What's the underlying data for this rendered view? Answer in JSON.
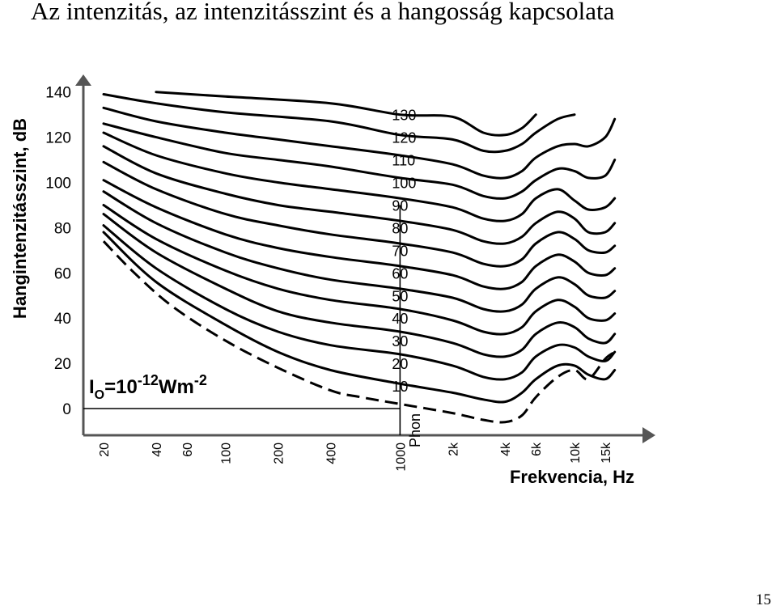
{
  "slide": {
    "title": "Az intenzitás, az intenzitásszint és a hangosság kapcsolata",
    "page_number": "15"
  },
  "chart_data": {
    "type": "line",
    "xlabel": "Frekvencia, Hz",
    "ylabel": "Hangintenzitásszint, dB",
    "xscale": "log",
    "xlim": [
      16,
      20000
    ],
    "ylim": [
      -5,
      145
    ],
    "x_ticks": [
      20,
      40,
      60,
      100,
      200,
      400,
      1000,
      2000,
      4000,
      6000,
      10000,
      15000
    ],
    "x_tick_labels": [
      "20",
      "40",
      "60",
      "100",
      "200",
      "400",
      "1000",
      "2k",
      "4k",
      "6k",
      "10k",
      "15k"
    ],
    "y_ticks": [
      0,
      20,
      40,
      60,
      80,
      100,
      120,
      140
    ],
    "y_tick_labels": [
      "0",
      "20",
      "40",
      "60",
      "80",
      "100",
      "120",
      "140"
    ],
    "reference_label": {
      "base": "I",
      "sub": "O",
      "eq": "=10",
      "exp1": "-12",
      "unit": "Wm",
      "exp2": "-2"
    },
    "reference_level_db": 0,
    "reference_frequency_hz": 1000,
    "phon_label": "Phon",
    "curve_labels": [
      "130",
      "120",
      "110",
      "100",
      "90",
      "80",
      "70",
      "60",
      "50",
      "40",
      "30",
      "20",
      "10"
    ],
    "curve_levels": [
      130,
      120,
      110,
      100,
      90,
      80,
      70,
      60,
      50,
      40,
      30,
      20,
      10
    ],
    "threshold_curve": {
      "style": "dashed",
      "points": [
        [
          20,
          74
        ],
        [
          30,
          60
        ],
        [
          50,
          45
        ],
        [
          100,
          30
        ],
        [
          200,
          18
        ],
        [
          400,
          8
        ],
        [
          600,
          5
        ],
        [
          1000,
          2
        ],
        [
          2000,
          -2
        ],
        [
          3000,
          -5
        ],
        [
          4000,
          -6
        ],
        [
          5000,
          -3
        ],
        [
          6000,
          5
        ],
        [
          8000,
          14
        ],
        [
          10000,
          17
        ],
        [
          12000,
          13
        ],
        [
          15000,
          22
        ],
        [
          17000,
          25
        ]
      ]
    },
    "series": [
      {
        "phon": 130,
        "points": [
          [
            40,
            140
          ],
          [
            100,
            138
          ],
          [
            400,
            135
          ],
          [
            1000,
            130
          ],
          [
            2000,
            129
          ],
          [
            3000,
            122
          ],
          [
            4000,
            121
          ],
          [
            5000,
            124
          ],
          [
            6000,
            130
          ]
        ]
      },
      {
        "phon": 120,
        "points": [
          [
            20,
            139
          ],
          [
            40,
            135
          ],
          [
            100,
            131
          ],
          [
            400,
            127
          ],
          [
            1000,
            121
          ],
          [
            2000,
            119
          ],
          [
            3000,
            114
          ],
          [
            4000,
            114
          ],
          [
            5000,
            117
          ],
          [
            6000,
            122
          ],
          [
            8000,
            128
          ],
          [
            10000,
            130
          ]
        ]
      },
      {
        "phon": 110,
        "points": [
          [
            20,
            133
          ],
          [
            40,
            127
          ],
          [
            100,
            122
          ],
          [
            200,
            119
          ],
          [
            400,
            116
          ],
          [
            1000,
            112
          ],
          [
            2000,
            108
          ],
          [
            3000,
            103
          ],
          [
            4000,
            102
          ],
          [
            5000,
            105
          ],
          [
            6000,
            111
          ],
          [
            8000,
            116
          ],
          [
            10000,
            117
          ],
          [
            12000,
            116
          ],
          [
            15000,
            120
          ],
          [
            17000,
            128
          ]
        ]
      },
      {
        "phon": 100,
        "points": [
          [
            20,
            126
          ],
          [
            40,
            120
          ],
          [
            100,
            113
          ],
          [
            200,
            110
          ],
          [
            400,
            107
          ],
          [
            1000,
            102
          ],
          [
            2000,
            99
          ],
          [
            3000,
            94
          ],
          [
            4000,
            93
          ],
          [
            5000,
            96
          ],
          [
            6000,
            101
          ],
          [
            8000,
            106
          ],
          [
            10000,
            105
          ],
          [
            12000,
            102
          ],
          [
            15000,
            103
          ],
          [
            17000,
            110
          ]
        ]
      },
      {
        "phon": 90,
        "points": [
          [
            20,
            122
          ],
          [
            40,
            112
          ],
          [
            100,
            104
          ],
          [
            200,
            100
          ],
          [
            400,
            97
          ],
          [
            1000,
            93
          ],
          [
            2000,
            89
          ],
          [
            3000,
            84
          ],
          [
            4000,
            83
          ],
          [
            5000,
            86
          ],
          [
            6000,
            93
          ],
          [
            8000,
            97
          ],
          [
            10000,
            92
          ],
          [
            12000,
            88
          ],
          [
            15000,
            89
          ],
          [
            17000,
            93
          ]
        ]
      },
      {
        "phon": 80,
        "points": [
          [
            20,
            116
          ],
          [
            40,
            104
          ],
          [
            100,
            95
          ],
          [
            200,
            90
          ],
          [
            400,
            87
          ],
          [
            1000,
            83
          ],
          [
            2000,
            79
          ],
          [
            3000,
            74
          ],
          [
            4000,
            73
          ],
          [
            5000,
            76
          ],
          [
            6000,
            82
          ],
          [
            8000,
            87
          ],
          [
            10000,
            84
          ],
          [
            12000,
            78
          ],
          [
            15000,
            78
          ],
          [
            17000,
            82
          ]
        ]
      },
      {
        "phon": 70,
        "points": [
          [
            20,
            109
          ],
          [
            40,
            97
          ],
          [
            100,
            86
          ],
          [
            200,
            81
          ],
          [
            400,
            77
          ],
          [
            1000,
            73
          ],
          [
            2000,
            69
          ],
          [
            3000,
            64
          ],
          [
            4000,
            63
          ],
          [
            5000,
            66
          ],
          [
            6000,
            73
          ],
          [
            8000,
            78
          ],
          [
            10000,
            75
          ],
          [
            12000,
            70
          ],
          [
            15000,
            69
          ],
          [
            17000,
            72
          ]
        ]
      },
      {
        "phon": 60,
        "points": [
          [
            20,
            101
          ],
          [
            40,
            89
          ],
          [
            100,
            77
          ],
          [
            200,
            71
          ],
          [
            400,
            67
          ],
          [
            1000,
            63
          ],
          [
            2000,
            59
          ],
          [
            3000,
            54
          ],
          [
            4000,
            53
          ],
          [
            5000,
            56
          ],
          [
            6000,
            63
          ],
          [
            8000,
            68
          ],
          [
            10000,
            65
          ],
          [
            12000,
            60
          ],
          [
            15000,
            59
          ],
          [
            17000,
            62
          ]
        ]
      },
      {
        "phon": 50,
        "points": [
          [
            20,
            96
          ],
          [
            40,
            82
          ],
          [
            100,
            69
          ],
          [
            200,
            62
          ],
          [
            400,
            57
          ],
          [
            1000,
            53
          ],
          [
            2000,
            49
          ],
          [
            3000,
            44
          ],
          [
            4000,
            43
          ],
          [
            5000,
            46
          ],
          [
            6000,
            53
          ],
          [
            8000,
            58
          ],
          [
            10000,
            55
          ],
          [
            12000,
            50
          ],
          [
            15000,
            49
          ],
          [
            17000,
            52
          ]
        ]
      },
      {
        "phon": 40,
        "points": [
          [
            20,
            90
          ],
          [
            40,
            75
          ],
          [
            100,
            61
          ],
          [
            200,
            53
          ],
          [
            400,
            48
          ],
          [
            1000,
            44
          ],
          [
            2000,
            39
          ],
          [
            3000,
            34
          ],
          [
            4000,
            33
          ],
          [
            5000,
            36
          ],
          [
            6000,
            43
          ],
          [
            8000,
            48
          ],
          [
            10000,
            45
          ],
          [
            12000,
            40
          ],
          [
            15000,
            39
          ],
          [
            17000,
            42
          ]
        ]
      },
      {
        "phon": 30,
        "points": [
          [
            20,
            86
          ],
          [
            40,
            69
          ],
          [
            100,
            53
          ],
          [
            200,
            43
          ],
          [
            400,
            38
          ],
          [
            1000,
            34
          ],
          [
            2000,
            29
          ],
          [
            3000,
            24
          ],
          [
            4000,
            23
          ],
          [
            5000,
            26
          ],
          [
            6000,
            33
          ],
          [
            8000,
            38
          ],
          [
            10000,
            36
          ],
          [
            12000,
            31
          ],
          [
            15000,
            29
          ],
          [
            17000,
            33
          ]
        ]
      },
      {
        "phon": 20,
        "points": [
          [
            20,
            81
          ],
          [
            40,
            62
          ],
          [
            100,
            44
          ],
          [
            200,
            34
          ],
          [
            400,
            28
          ],
          [
            1000,
            24
          ],
          [
            2000,
            19
          ],
          [
            3000,
            14
          ],
          [
            4000,
            13
          ],
          [
            5000,
            16
          ],
          [
            6000,
            23
          ],
          [
            8000,
            28
          ],
          [
            10000,
            27
          ],
          [
            12000,
            23
          ],
          [
            15000,
            21
          ],
          [
            17000,
            25
          ]
        ]
      },
      {
        "phon": 10,
        "points": [
          [
            20,
            78
          ],
          [
            40,
            56
          ],
          [
            100,
            37
          ],
          [
            200,
            25
          ],
          [
            400,
            17
          ],
          [
            1000,
            11
          ],
          [
            2000,
            7
          ],
          [
            3000,
            4
          ],
          [
            4000,
            3
          ],
          [
            5000,
            7
          ],
          [
            6000,
            13
          ],
          [
            8000,
            19
          ],
          [
            10000,
            19
          ],
          [
            12000,
            15
          ],
          [
            15000,
            13
          ],
          [
            17000,
            17
          ]
        ]
      }
    ]
  }
}
